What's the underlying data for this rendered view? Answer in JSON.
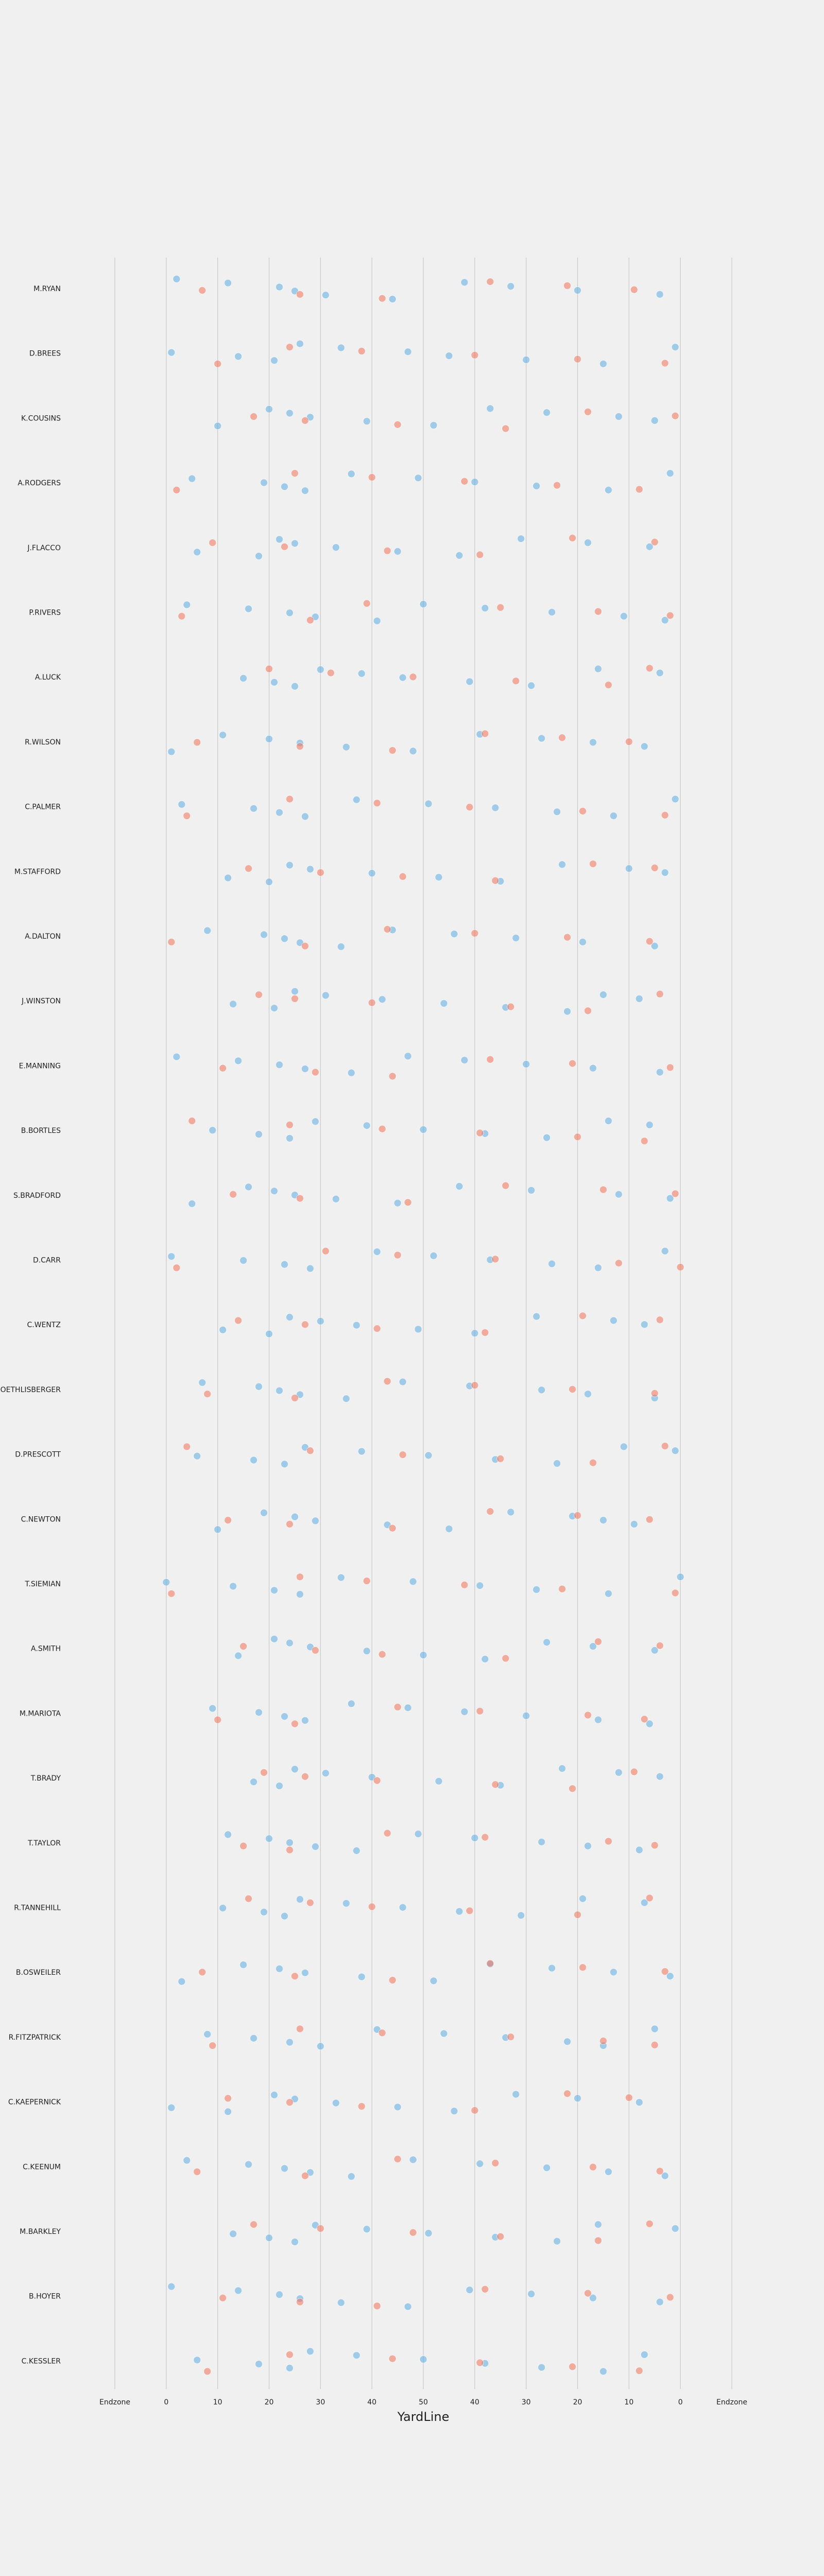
{
  "chart_data": {
    "type": "strip",
    "x_label": "YardLine",
    "xlim": [
      -10,
      110
    ],
    "xticks": [
      {
        "value": -10,
        "label": "Endzone"
      },
      0,
      10,
      20,
      30,
      40,
      50,
      {
        "value": 60,
        "label": "40"
      },
      {
        "value": 70,
        "label": "30"
      },
      {
        "value": 80,
        "label": "20"
      },
      {
        "value": 90,
        "label": "10"
      },
      {
        "value": 100,
        "label": "0"
      },
      {
        "value": 110,
        "label": "Endzone"
      }
    ],
    "grid": true,
    "categories": [
      "M.RYAN",
      "D.BREES",
      "K.COUSINS",
      "A.RODGERS",
      "J.FLACCO",
      "P.RIVERS",
      "A.LUCK",
      "R.WILSON",
      "C.PALMER",
      "M.STAFFORD",
      "A.DALTON",
      "J.WINSTON",
      "E.MANNING",
      "B.BORTLES",
      "S.BRADFORD",
      "D.CARR",
      "C.WENTZ",
      "B.ROETHLISBERGER",
      "D.PRESCOTT",
      "C.NEWTON",
      "T.SIEMIAN",
      "A.SMITH",
      "M.MARIOTA",
      "T.BRADY",
      "T.TAYLOR",
      "R.TANNEHILL",
      "B.OSWEILER",
      "R.FITZPATRICK",
      "C.KAEPERNICK",
      "C.KEENUM",
      "M.BARKLEY",
      "B.HOYER",
      "C.KESSLER"
    ],
    "series": [
      {
        "color": "#5dade2",
        "values": [
          [
            2,
            12,
            22,
            25,
            31,
            44,
            58,
            67,
            80,
            96
          ],
          [
            1,
            14,
            21,
            26,
            34,
            47,
            55,
            70,
            85,
            99
          ],
          [
            10,
            20,
            24,
            28,
            39,
            52,
            63,
            74,
            88,
            95
          ],
          [
            5,
            19,
            23,
            27,
            36,
            49,
            60,
            72,
            86,
            98
          ],
          [
            6,
            18,
            22,
            25,
            33,
            45,
            57,
            69,
            82,
            94
          ],
          [
            4,
            16,
            24,
            29,
            41,
            50,
            62,
            75,
            89,
            97
          ],
          [
            15,
            21,
            25,
            30,
            38,
            46,
            59,
            71,
            84,
            96
          ],
          [
            1,
            11,
            20,
            26,
            35,
            48,
            61,
            73,
            83,
            93
          ],
          [
            3,
            17,
            22,
            27,
            37,
            51,
            64,
            76,
            87,
            99
          ],
          [
            12,
            20,
            24,
            28,
            40,
            53,
            65,
            77,
            90,
            97
          ],
          [
            8,
            19,
            23,
            26,
            34,
            44,
            56,
            68,
            81,
            95
          ],
          [
            13,
            21,
            25,
            31,
            42,
            54,
            66,
            78,
            85,
            92
          ],
          [
            2,
            14,
            22,
            27,
            36,
            47,
            58,
            70,
            83,
            96
          ],
          [
            9,
            18,
            24,
            29,
            39,
            50,
            62,
            74,
            86,
            94
          ],
          [
            5,
            16,
            21,
            25,
            33,
            45,
            57,
            71,
            88,
            98
          ],
          [
            1,
            15,
            23,
            28,
            41,
            52,
            63,
            75,
            84,
            97
          ],
          [
            11,
            20,
            24,
            30,
            37,
            49,
            60,
            72,
            87,
            93
          ],
          [
            7,
            18,
            22,
            26,
            35,
            46,
            59,
            73,
            82,
            95
          ],
          [
            6,
            17,
            23,
            27,
            38,
            51,
            64,
            76,
            89,
            99
          ],
          [
            10,
            19,
            25,
            29,
            43,
            55,
            67,
            79,
            85,
            91
          ],
          [
            0,
            13,
            21,
            26,
            34,
            48,
            61,
            72,
            86,
            100
          ],
          [
            14,
            21,
            24,
            28,
            39,
            50,
            62,
            74,
            83,
            95
          ],
          [
            9,
            18,
            23,
            27,
            36,
            47,
            58,
            70,
            84,
            94
          ],
          [
            17,
            22,
            25,
            31,
            40,
            53,
            65,
            77,
            88,
            96
          ],
          [
            12,
            20,
            24,
            29,
            37,
            49,
            60,
            73,
            82,
            92
          ],
          [
            11,
            19,
            23,
            26,
            35,
            46,
            57,
            69,
            81,
            93
          ],
          [
            3,
            15,
            22,
            27,
            38,
            52,
            63,
            75,
            87,
            98
          ],
          [
            8,
            17,
            24,
            30,
            41,
            54,
            66,
            78,
            85,
            95
          ],
          [
            1,
            12,
            21,
            25,
            33,
            45,
            56,
            68,
            80,
            92
          ],
          [
            4,
            16,
            23,
            28,
            36,
            48,
            61,
            74,
            86,
            97
          ],
          [
            13,
            20,
            25,
            29,
            39,
            51,
            64,
            76,
            84,
            99
          ],
          [
            1,
            14,
            22,
            26,
            34,
            47,
            59,
            71,
            83,
            96
          ],
          [
            6,
            18,
            24,
            28,
            37,
            50,
            62,
            73,
            85,
            93
          ]
        ]
      },
      {
        "color": "#f1735a",
        "values": [
          [
            7,
            26,
            42,
            63,
            78,
            91
          ],
          [
            10,
            24,
            38,
            60,
            80,
            97
          ],
          [
            17,
            27,
            45,
            66,
            82,
            99
          ],
          [
            2,
            25,
            40,
            58,
            76,
            92
          ],
          [
            9,
            23,
            43,
            61,
            79,
            95
          ],
          [
            3,
            28,
            39,
            65,
            84,
            98
          ],
          [
            20,
            32,
            48,
            68,
            86,
            94
          ],
          [
            6,
            26,
            44,
            62,
            77,
            90
          ],
          [
            4,
            24,
            41,
            59,
            81,
            97
          ],
          [
            16,
            30,
            46,
            64,
            83,
            95
          ],
          [
            1,
            27,
            43,
            60,
            78,
            94
          ],
          [
            18,
            25,
            40,
            67,
            82,
            96
          ],
          [
            11,
            29,
            44,
            63,
            79,
            98
          ],
          [
            5,
            24,
            42,
            61,
            80,
            93
          ],
          [
            13,
            26,
            47,
            66,
            85,
            99
          ],
          [
            2,
            31,
            45,
            64,
            88,
            100
          ],
          [
            14,
            27,
            41,
            62,
            81,
            96
          ],
          [
            8,
            25,
            43,
            60,
            79,
            95
          ],
          [
            4,
            28,
            46,
            65,
            83,
            97
          ],
          [
            12,
            24,
            44,
            63,
            80,
            94
          ],
          [
            1,
            26,
            39,
            58,
            77,
            99
          ],
          [
            15,
            29,
            42,
            66,
            84,
            96
          ],
          [
            10,
            25,
            45,
            61,
            82,
            93
          ],
          [
            19,
            27,
            41,
            64,
            79,
            91
          ],
          [
            15,
            24,
            43,
            62,
            86,
            95
          ],
          [
            16,
            28,
            40,
            59,
            80,
            94
          ],
          [
            7,
            25,
            44,
            63,
            81,
            97
          ],
          [
            9,
            26,
            42,
            67,
            85,
            95
          ],
          [
            12,
            24,
            38,
            60,
            78,
            90
          ],
          [
            6,
            27,
            45,
            64,
            83,
            96
          ],
          [
            17,
            30,
            48,
            65,
            84,
            94
          ],
          [
            11,
            26,
            41,
            62,
            82,
            98
          ],
          [
            8,
            24,
            44,
            61,
            79,
            92
          ]
        ]
      }
    ]
  }
}
